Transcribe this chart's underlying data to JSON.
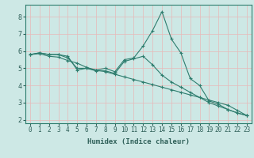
{
  "xlabel": "Humidex (Indice chaleur)",
  "ylabel": "",
  "background_color": "#cde8e5",
  "grid_color": "#b0d5d0",
  "line_color": "#2e7d6e",
  "xlim": [
    -0.5,
    23.5
  ],
  "ylim": [
    1.8,
    8.7
  ],
  "x": [
    0,
    1,
    2,
    3,
    4,
    5,
    6,
    7,
    8,
    9,
    10,
    11,
    12,
    13,
    14,
    15,
    16,
    17,
    18,
    19,
    20,
    21,
    22,
    23
  ],
  "series1": [
    5.8,
    5.9,
    5.8,
    5.8,
    5.7,
    4.9,
    5.0,
    4.9,
    5.0,
    4.8,
    5.5,
    5.6,
    6.3,
    7.2,
    8.3,
    6.7,
    5.9,
    4.4,
    4.0,
    3.1,
    2.9,
    2.6,
    2.4,
    2.25
  ],
  "series2": [
    5.8,
    5.9,
    5.8,
    5.8,
    5.6,
    5.0,
    5.0,
    4.85,
    4.85,
    4.7,
    5.4,
    5.55,
    5.7,
    5.2,
    4.6,
    4.2,
    3.9,
    3.6,
    3.3,
    3.0,
    2.8,
    2.6,
    2.4,
    2.25
  ],
  "series3": [
    5.8,
    5.85,
    5.7,
    5.65,
    5.45,
    5.3,
    5.05,
    4.9,
    4.8,
    4.65,
    4.5,
    4.35,
    4.2,
    4.05,
    3.9,
    3.75,
    3.6,
    3.45,
    3.3,
    3.15,
    3.0,
    2.85,
    2.55,
    2.25
  ],
  "xticks": [
    0,
    1,
    2,
    3,
    4,
    5,
    6,
    7,
    8,
    9,
    10,
    11,
    12,
    13,
    14,
    15,
    16,
    17,
    18,
    19,
    20,
    21,
    22,
    23
  ],
  "yticks": [
    2,
    3,
    4,
    5,
    6,
    7,
    8
  ],
  "marker": "+",
  "markersize": 3,
  "linewidth": 0.8,
  "tick_fontsize": 5.5,
  "xlabel_fontsize": 6.5
}
